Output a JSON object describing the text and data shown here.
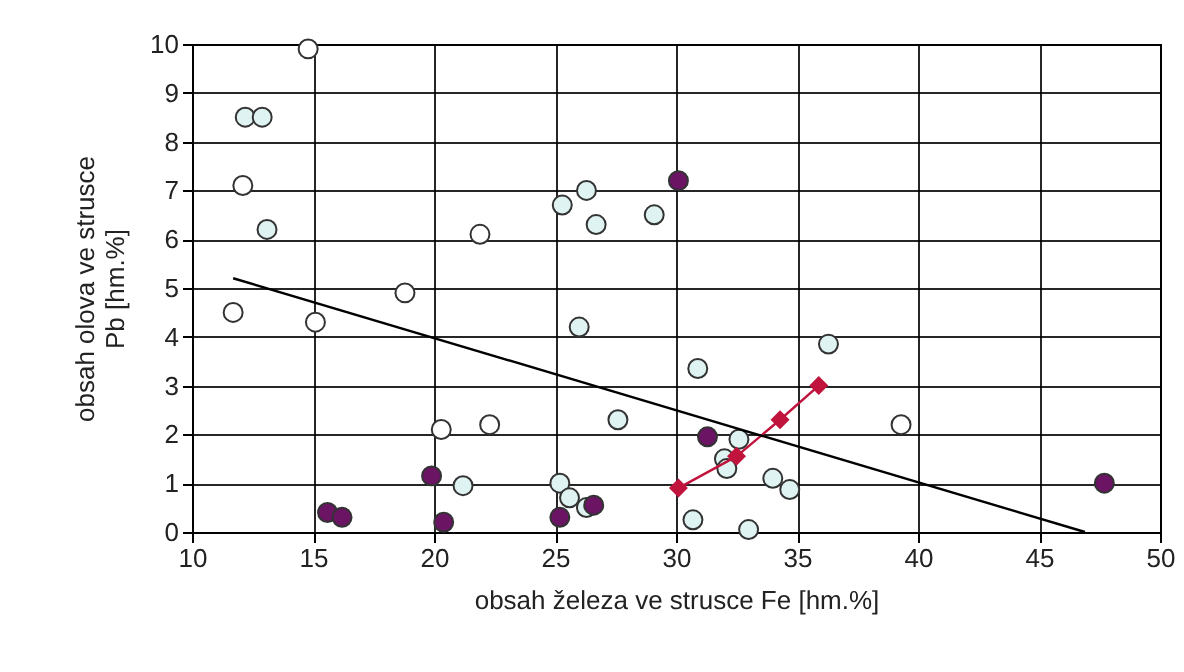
{
  "chart_data": {
    "type": "scatter",
    "xlabel": "obsah železa ve strusce Fe [hm.%]",
    "ylabel": "obsah olova ve strusce Pb [hm.%]",
    "xlim": [
      10,
      50
    ],
    "xticks": [
      10,
      15,
      20,
      25,
      30,
      35,
      40,
      45,
      50
    ],
    "ylim": [
      0,
      10
    ],
    "yticks": [
      0,
      1,
      2,
      3,
      4,
      5,
      6,
      7,
      8,
      9,
      10
    ],
    "grid": true,
    "marker": "circle",
    "series": [
      {
        "color": "#ffffff",
        "x": [
          14.8,
          12.1,
          21.9,
          18.8,
          11.7,
          15.1,
          20.3,
          22.3,
          39.3
        ],
        "values": [
          9.9,
          7.1,
          6.1,
          4.9,
          4.5,
          4.3,
          2.1,
          2.2,
          2.2
        ]
      },
      {
        "color": "#dff4f2",
        "x": [
          12.2,
          12.9,
          13.1,
          25.3,
          26.3,
          26.7,
          29.1,
          26.0,
          27.6,
          21.2,
          25.2,
          25.6,
          26.3,
          36.3,
          30.9,
          32.6,
          32.0,
          32.1,
          34.0,
          34.7,
          30.7,
          33.0
        ],
        "values": [
          8.5,
          8.5,
          6.2,
          6.7,
          7.0,
          6.3,
          6.5,
          4.2,
          2.3,
          0.95,
          1.0,
          0.7,
          0.5,
          3.85,
          3.35,
          1.9,
          1.5,
          1.3,
          1.1,
          0.87,
          0.25,
          0.05
        ]
      },
      {
        "color": "#6a1463",
        "x": [
          19.9,
          20.4,
          25.2,
          26.6,
          15.6,
          16.2,
          30.1,
          31.3,
          47.7
        ],
        "values": [
          1.15,
          0.2,
          0.3,
          0.55,
          0.4,
          0.3,
          7.2,
          1.95,
          1.0
        ]
      },
      {
        "type": "line",
        "marker": "diamond",
        "color": "#c0143c",
        "x": [
          30.1,
          32.5,
          34.3,
          35.9
        ],
        "values": [
          0.9,
          1.55,
          2.3,
          3.0
        ]
      },
      {
        "type": "line",
        "marker": "none",
        "color": "#000000",
        "x": [
          11.7,
          46.9
        ],
        "values": [
          5.2,
          0
        ]
      }
    ]
  }
}
